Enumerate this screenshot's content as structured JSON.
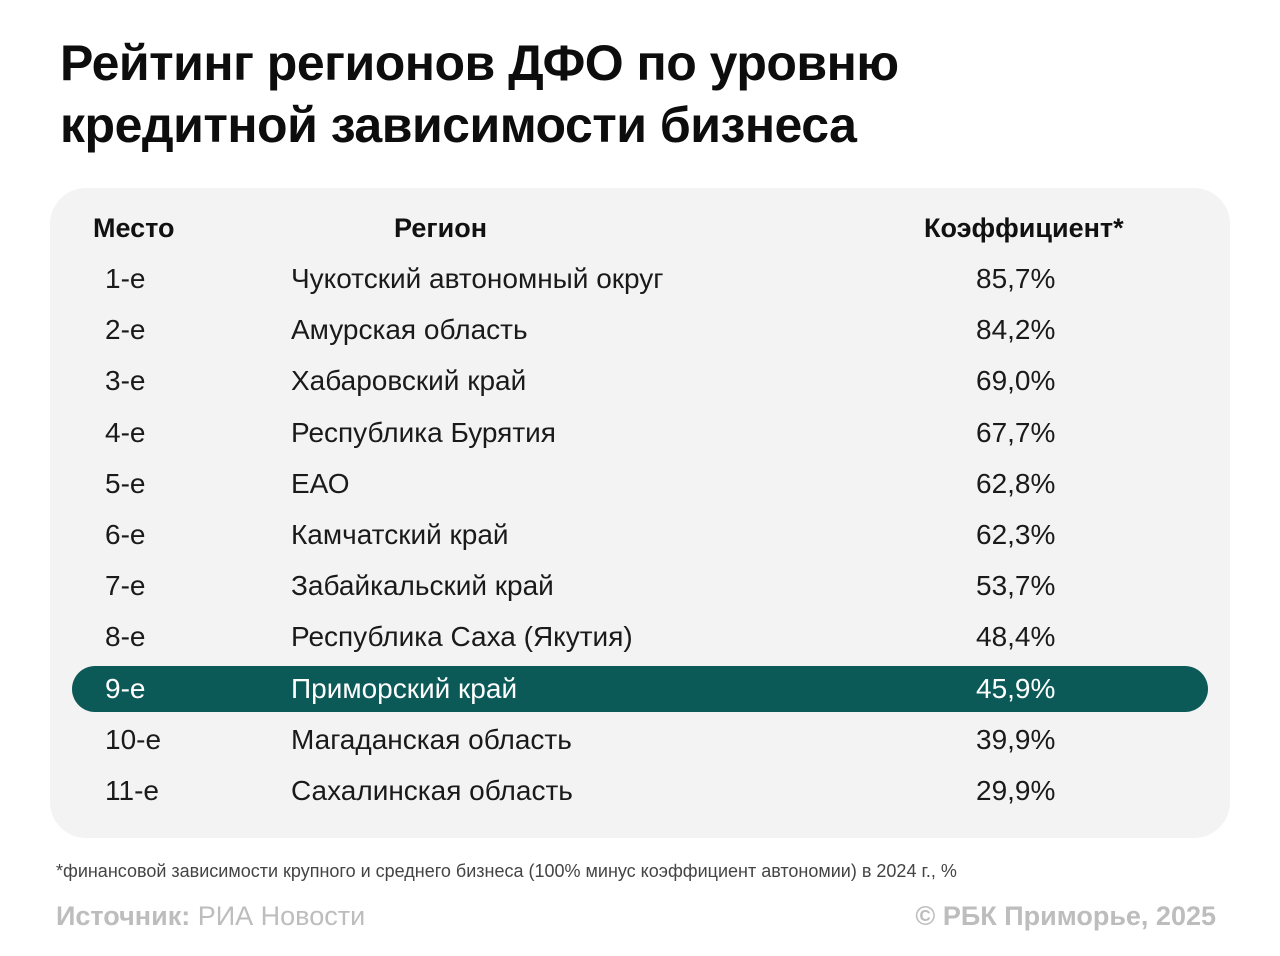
{
  "title": {
    "line1": "Рейтинг регионов ДФО по уровню",
    "line2": "кредитной зависимости бизнеса"
  },
  "chart_data": {
    "type": "table",
    "columns": [
      "Место",
      "Регион",
      "Коэффициент*"
    ],
    "rows": [
      {
        "place": "1-е",
        "region": "Чукотский автономный округ",
        "value": "85,7%",
        "highlight": false
      },
      {
        "place": "2-е",
        "region": "Амурская область",
        "value": "84,2%",
        "highlight": false
      },
      {
        "place": "3-е",
        "region": "Хабаровский край",
        "value": "69,0%",
        "highlight": false
      },
      {
        "place": "4-е",
        "region": "Республика Бурятия",
        "value": "67,7%",
        "highlight": false
      },
      {
        "place": "5-е",
        "region": "ЕАО",
        "value": "62,8%",
        "highlight": false
      },
      {
        "place": "6-е",
        "region": "Камчатский край",
        "value": "62,3%",
        "highlight": false
      },
      {
        "place": "7-е",
        "region": "Забайкальский край",
        "value": "53,7%",
        "highlight": false
      },
      {
        "place": "8-е",
        "region": "Республика Саха (Якутия)",
        "value": "48,4%",
        "highlight": false
      },
      {
        "place": "9-е",
        "region": "Приморский край",
        "value": "45,9%",
        "highlight": true
      },
      {
        "place": "10-е",
        "region": "Магаданская область",
        "value": "39,9%",
        "highlight": false
      },
      {
        "place": "11-е",
        "region": "Сахалинская область",
        "value": "29,9%",
        "highlight": false
      }
    ],
    "highlight_color": "#0b5a58"
  },
  "footnote": "*финансовой зависимости крупного и среднего бизнеса (100% минус коэффициент автономии) в 2024 г., %",
  "source": {
    "label": "Источник:",
    "value": "РИА Новости"
  },
  "copyright": "© РБК Приморье, 2025"
}
